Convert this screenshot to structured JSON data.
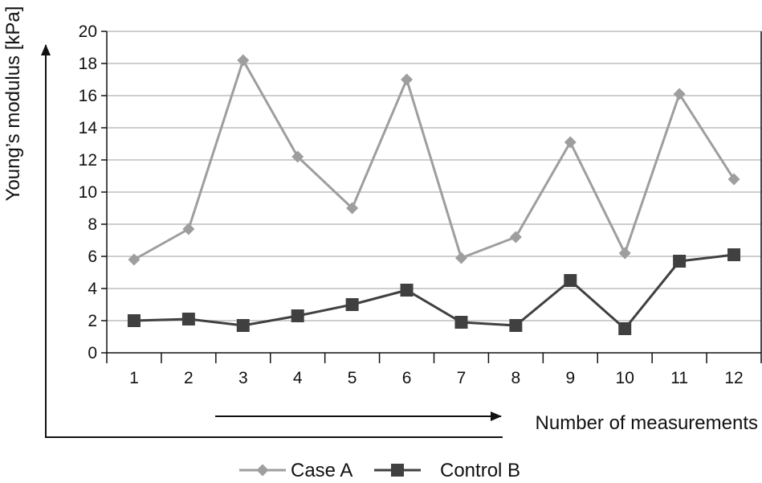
{
  "chart_data": {
    "type": "line",
    "title": "",
    "xlabel": "Number of measurements",
    "ylabel": "Young’s modulus [kPa]",
    "categories": [
      "1",
      "2",
      "3",
      "4",
      "5",
      "6",
      "7",
      "8",
      "9",
      "10",
      "11",
      "12"
    ],
    "ylim": [
      0,
      20
    ],
    "yticks": [
      "0",
      "2",
      "4",
      "6",
      "8",
      "10",
      "12",
      "14",
      "16",
      "18",
      "20"
    ],
    "grid": "horizontal",
    "legend_position": "bottom",
    "series": [
      {
        "name": "Case A",
        "marker": "diamond",
        "color": "#9e9e9e",
        "values": [
          5.8,
          7.7,
          18.2,
          12.2,
          9.0,
          17.0,
          5.9,
          7.2,
          13.1,
          6.2,
          16.1,
          10.8
        ]
      },
      {
        "name": "Control B",
        "marker": "square",
        "color": "#404040",
        "values": [
          2.0,
          2.1,
          1.7,
          2.3,
          3.0,
          3.9,
          1.9,
          1.7,
          4.5,
          1.5,
          5.7,
          6.1
        ]
      }
    ]
  }
}
